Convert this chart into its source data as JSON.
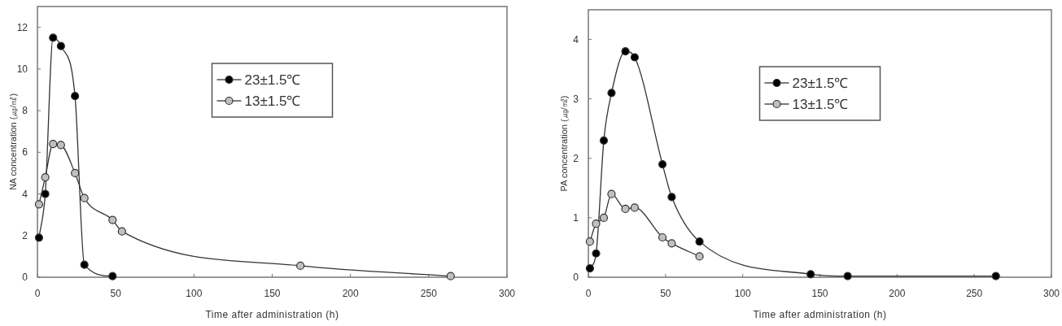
{
  "chart_data": [
    {
      "type": "line",
      "xlabel": "Time after administration (h)",
      "ylabel": "NA concentration (㎍/㎖)",
      "xlim": [
        0,
        300
      ],
      "xticks": [
        0,
        50,
        100,
        150,
        200,
        250,
        300
      ],
      "ylim": [
        0,
        13
      ],
      "yticks": [
        0,
        2,
        4,
        6,
        8,
        10,
        12
      ],
      "marker": "circle",
      "legend": "top",
      "grid": false,
      "series": [
        {
          "name": "23±1.5℃",
          "color": "#000000",
          "x": [
            1,
            5,
            10,
            15,
            24,
            30,
            48
          ],
          "values": [
            1.9,
            4.0,
            11.5,
            11.1,
            8.7,
            0.6,
            0.05
          ]
        },
        {
          "name": "13±1.5℃",
          "color": "#c0c0c0",
          "x": [
            1,
            5,
            10,
            15,
            24,
            30,
            48,
            54,
            168,
            264
          ],
          "values": [
            3.5,
            4.8,
            6.4,
            6.35,
            5.0,
            3.8,
            2.75,
            2.2,
            0.55,
            0.05
          ]
        }
      ]
    },
    {
      "type": "line",
      "xlabel": "Time after administration (h)",
      "ylabel": "PA concentration (㎍/㎖)",
      "xlim": [
        0,
        300
      ],
      "xticks": [
        0,
        50,
        100,
        150,
        200,
        250,
        300
      ],
      "ylim": [
        0,
        4.5
      ],
      "yticks": [
        0,
        1,
        2,
        3,
        4
      ],
      "marker": "circle",
      "legend": "top",
      "grid": false,
      "series": [
        {
          "name": "23±1.5℃",
          "color": "#000000",
          "x": [
            1,
            5,
            10,
            15,
            24,
            30,
            48,
            54,
            72,
            144,
            168,
            264
          ],
          "values": [
            0.15,
            0.4,
            2.3,
            3.1,
            3.8,
            3.7,
            1.9,
            1.35,
            0.6,
            0.05,
            0.02,
            0.02
          ]
        },
        {
          "name": "13±1.5℃",
          "color": "#c0c0c0",
          "x": [
            1,
            5,
            10,
            15,
            24,
            30,
            48,
            54,
            72
          ],
          "values": [
            0.6,
            0.9,
            1.0,
            1.4,
            1.15,
            1.17,
            0.67,
            0.57,
            0.35
          ]
        }
      ]
    }
  ]
}
